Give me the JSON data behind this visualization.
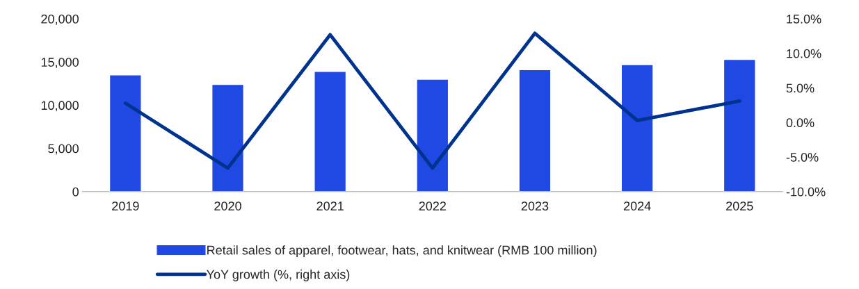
{
  "chart_data": {
    "type": "bar",
    "categories": [
      "2019",
      "2020",
      "2021",
      "2022",
      "2023",
      "2024",
      "2025"
    ],
    "series": [
      {
        "name": "Retail sales of apparel, footwear, hats, and knitwear (RMB 100 million)",
        "color": "#2049e3",
        "values": [
          13500,
          12400,
          13900,
          13000,
          14100,
          14700,
          15300
        ]
      },
      {
        "name": "YoY growth (%, right axis)",
        "type": "line",
        "axis": "y2",
        "color": "#00338d",
        "values": [
          2.8,
          -6.6,
          12.7,
          -6.6,
          12.9,
          0.3,
          3.1
        ]
      }
    ],
    "ylim": [
      0,
      20000
    ],
    "yticks": [
      {
        "value": 0,
        "label": "0"
      },
      {
        "value": 5000,
        "label": "5,000"
      },
      {
        "value": 10000,
        "label": "10,000"
      },
      {
        "value": 15000,
        "label": "15,000"
      },
      {
        "value": 20000,
        "label": "20,000"
      }
    ],
    "y2lim": [
      -10,
      15
    ],
    "y2ticks": [
      {
        "value": -10,
        "label": "-10.0%"
      },
      {
        "value": -5,
        "label": "-5.0%"
      },
      {
        "value": 0,
        "label": "0.0%"
      },
      {
        "value": 5,
        "label": "5.0%"
      },
      {
        "value": 10,
        "label": "10.0%"
      },
      {
        "value": 15,
        "label": "15.0%"
      }
    ],
    "grid": false,
    "legend": "bottom",
    "marker": "none",
    "line_style": "solid"
  }
}
